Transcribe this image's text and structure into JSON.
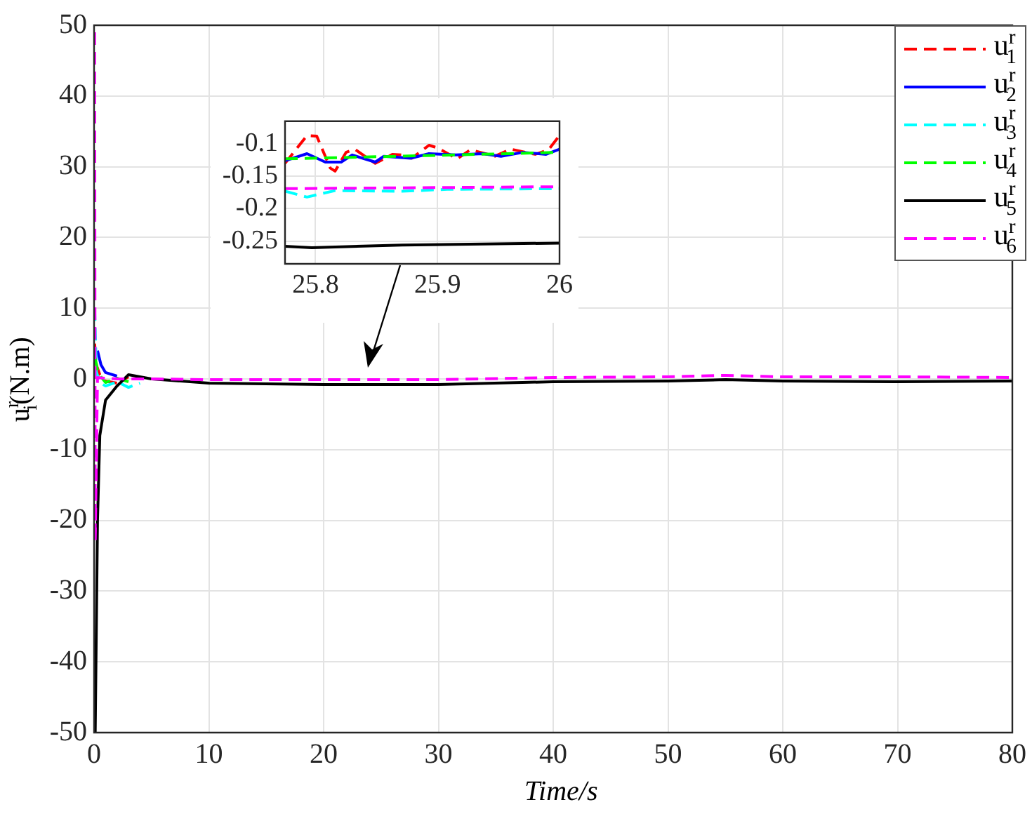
{
  "chart_data": [
    {
      "type": "line",
      "xlabel": "Time/s",
      "ylabel": "u$^{r}$$_{i}$(N.m)",
      "xlim": [
        0,
        80
      ],
      "ylim": [
        -50,
        50
      ],
      "xticks": [
        0,
        10,
        20,
        30,
        40,
        50,
        60,
        70,
        80
      ],
      "yticks": [
        -50,
        -40,
        -30,
        -20,
        -10,
        0,
        10,
        20,
        30,
        40,
        50
      ],
      "grid": true,
      "legend": "top right",
      "marker": "none",
      "series": [
        {
          "name": "u$^{r}$$_{1}$",
          "color": "#ff0000",
          "line_style": "dashed",
          "x": [
            0.05,
            0.2,
            0.5,
            1,
            2,
            3
          ],
          "values": [
            5,
            2,
            0.6,
            -0.3,
            -0.6,
            0.3
          ]
        },
        {
          "name": "u$^{r}$$_{2}$",
          "color": "#0000ff",
          "line_style": "solid",
          "x": [
            0.3,
            0.6,
            1,
            2
          ],
          "values": [
            4,
            2,
            0.9,
            0.4
          ]
        },
        {
          "name": "u$^{r}$$_{3}$",
          "color": "#00ffff",
          "line_style": "dashed",
          "x": [
            0.05,
            0.2,
            0.5,
            1,
            2,
            3,
            4
          ],
          "values": [
            10,
            1,
            -0.5,
            -1,
            -0.4,
            -1.2,
            -0.6
          ]
        },
        {
          "name": "u$^{r}$$_{4}$",
          "color": "#00ff00",
          "line_style": "dashed",
          "x": [
            0.1,
            0.3,
            0.6,
            1,
            2,
            3
          ],
          "values": [
            3,
            1.2,
            0.3,
            -0.5,
            0.1,
            -0.4
          ]
        },
        {
          "name": "u$^{r}$$_{5}$",
          "color": "#000000",
          "line_style": "solid",
          "x": [
            0.1,
            0.3,
            0.5,
            1,
            2,
            3,
            5,
            10,
            20,
            30,
            40,
            50,
            55,
            60,
            70,
            80
          ],
          "values": [
            -50,
            -20,
            -8,
            -3,
            -1,
            0.6,
            0,
            -0.6,
            -0.8,
            -0.8,
            -0.4,
            -0.3,
            -0.1,
            -0.3,
            -0.4,
            -0.3
          ]
        },
        {
          "name": "u$^{r}$$_{6}$",
          "color": "#ff00ff",
          "line_style": "dashed",
          "x": [
            0.05,
            0.1,
            0.3,
            1,
            2,
            5,
            10,
            20,
            30,
            40,
            50,
            55,
            60,
            70,
            80
          ],
          "values": [
            49,
            -23,
            0.2,
            0.1,
            0,
            0,
            -0.1,
            -0.1,
            -0.1,
            0.2,
            0.3,
            0.5,
            0.3,
            0.3,
            0.2
          ]
        }
      ]
    },
    {
      "type": "line",
      "xlim": [
        25.775,
        26
      ],
      "ylim": [
        -0.285,
        -0.065
      ],
      "xticks": [
        25.8,
        25.9,
        26
      ],
      "yticks": [
        -0.25,
        -0.2,
        -0.15,
        -0.1
      ],
      "grid": true,
      "marker": "none",
      "series": [
        {
          "color": "#ff0000",
          "line_style": "dashed",
          "x": [
            25.775,
            25.793,
            25.801,
            25.812,
            25.816,
            25.825,
            25.832,
            25.849,
            25.863,
            25.871,
            25.879,
            25.893,
            25.9,
            25.916,
            25.927,
            25.947,
            25.96,
            25.98,
            25.991,
            26
          ],
          "values": [
            -0.13,
            -0.087,
            -0.088,
            -0.137,
            -0.142,
            -0.113,
            -0.108,
            -0.13,
            -0.116,
            -0.117,
            -0.122,
            -0.102,
            -0.106,
            -0.123,
            -0.109,
            -0.119,
            -0.108,
            -0.116,
            -0.109,
            -0.087
          ]
        },
        {
          "color": "#0000ff",
          "line_style": "solid",
          "x": [
            25.775,
            25.793,
            25.808,
            25.821,
            25.83,
            25.849,
            25.856,
            25.878,
            25.893,
            25.915,
            25.937,
            25.952,
            25.97,
            25.989,
            26
          ],
          "values": [
            -0.126,
            -0.115,
            -0.128,
            -0.128,
            -0.117,
            -0.128,
            -0.119,
            -0.122,
            -0.115,
            -0.117,
            -0.115,
            -0.119,
            -0.113,
            -0.116,
            -0.108
          ]
        },
        {
          "color": "#00ffff",
          "line_style": "dashed",
          "x": [
            25.775,
            25.793,
            25.816,
            25.871,
            25.908,
            26
          ],
          "values": [
            -0.173,
            -0.182,
            -0.172,
            -0.173,
            -0.17,
            -0.169
          ]
        },
        {
          "color": "#00ff00",
          "line_style": "dashed",
          "x": [
            25.775,
            25.89,
            26
          ],
          "values": [
            -0.123,
            -0.118,
            -0.113
          ]
        },
        {
          "color": "#000000",
          "line_style": "solid",
          "x": [
            25.775,
            25.797,
            25.871,
            26
          ],
          "values": [
            -0.258,
            -0.26,
            -0.256,
            -0.253
          ]
        },
        {
          "color": "#ff00ff",
          "line_style": "dashed",
          "x": [
            25.775,
            26
          ],
          "values": [
            -0.169,
            -0.166
          ]
        }
      ]
    }
  ]
}
